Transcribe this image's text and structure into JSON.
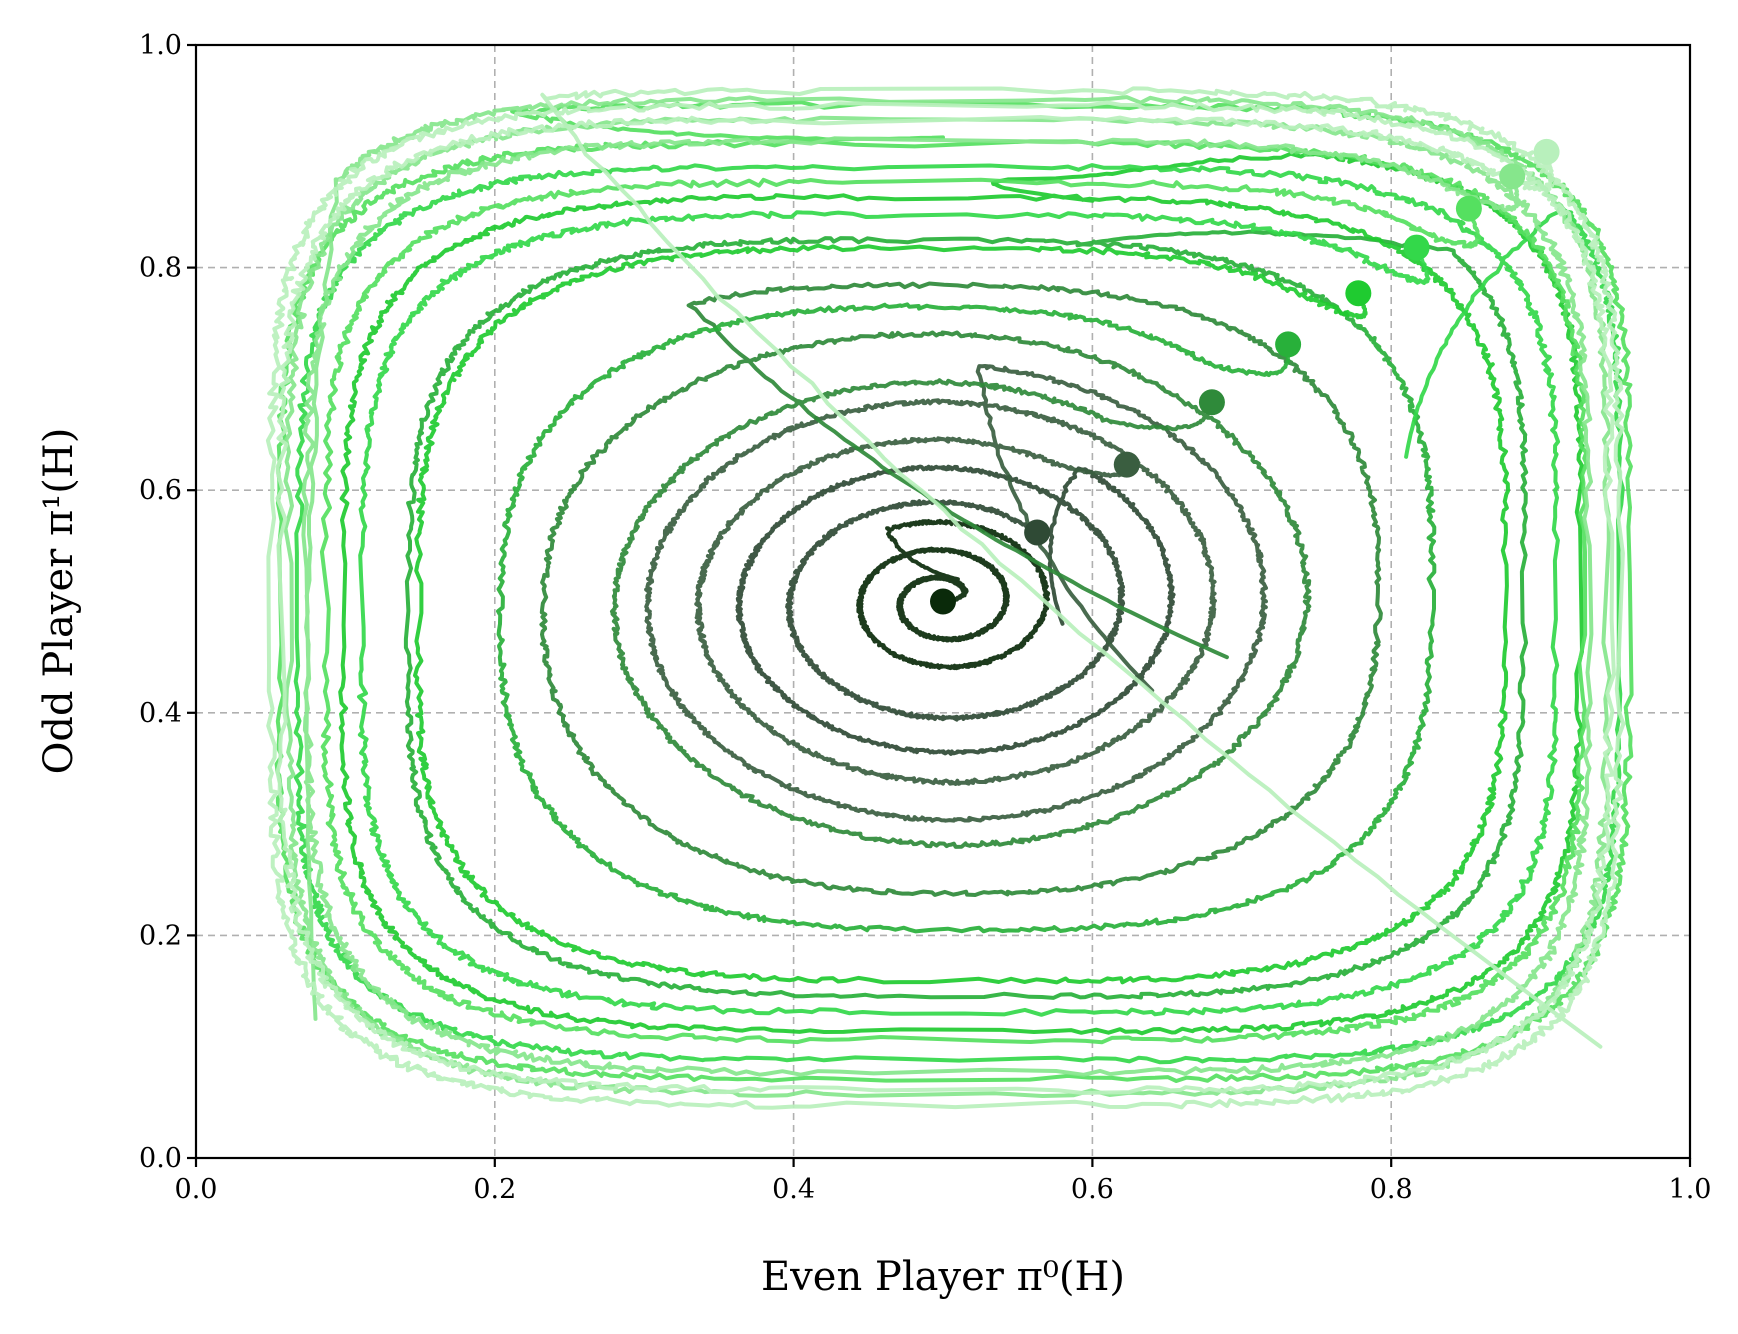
{
  "chart_data": {
    "type": "line",
    "xlabel": "Even Player π⁰(H)",
    "ylabel": "Odd Player π¹(H)",
    "xlim": [
      0.0,
      1.0
    ],
    "ylim": [
      0.0,
      1.0
    ],
    "xticks": [
      "0.0",
      "0.2",
      "0.4",
      "0.6",
      "0.8",
      "1.0"
    ],
    "yticks": [
      "0.0",
      "0.2",
      "0.4",
      "0.6",
      "0.8",
      "1.0"
    ],
    "grid": true,
    "legend": "none",
    "center": [
      0.5,
      0.5
    ],
    "series": [
      {
        "color": "#0a2a0a",
        "start": [
          0.5,
          0.5
        ],
        "end": [
          0.51,
          0.52
        ],
        "rx": [
          0.015,
          0.08
        ],
        "ry": [
          0.015,
          0.075
        ],
        "turns": 2.4,
        "start_angle": 0.0
      },
      {
        "color": "#2f4a35",
        "start": [
          0.563,
          0.562
        ],
        "end": [
          0.58,
          0.48
        ],
        "rx": [
          0.09,
          0.16
        ],
        "ry": [
          0.085,
          0.15
        ],
        "turns": 2.1,
        "start_angle": 0.72
      },
      {
        "color": "#3a5e40",
        "start": [
          0.623,
          0.623
        ],
        "end": [
          0.64,
          0.42
        ],
        "rx": [
          0.15,
          0.225
        ],
        "ry": [
          0.14,
          0.215
        ],
        "turns": 2.2,
        "start_angle": 0.62
      },
      {
        "color": "#2f8a3a",
        "start": [
          0.68,
          0.679
        ],
        "end": [
          0.69,
          0.45
        ],
        "rx": [
          0.2,
          0.31
        ],
        "ry": [
          0.19,
          0.29
        ],
        "turns": 2.3,
        "start_angle": 0.56
      },
      {
        "color": "#28b03a",
        "start": [
          0.731,
          0.731
        ],
        "end": [
          0.59,
          0.82
        ],
        "rx": [
          0.27,
          0.4
        ],
        "ry": [
          0.255,
          0.38
        ],
        "turns": 2.1,
        "start_angle": 0.52
      },
      {
        "color": "#1fcb30",
        "start": [
          0.778,
          0.777
        ],
        "end": [
          0.6,
          0.86
        ],
        "rx": [
          0.33,
          0.44
        ],
        "ry": [
          0.31,
          0.41
        ],
        "turns": 2.2,
        "start_angle": 0.48
      },
      {
        "color": "#33d84a",
        "start": [
          0.817,
          0.818
        ],
        "end": [
          0.81,
          0.63
        ],
        "rx": [
          0.37,
          0.46
        ],
        "ry": [
          0.34,
          0.43
        ],
        "turns": 2.1,
        "start_angle": 0.44
      },
      {
        "color": "#55e060",
        "start": [
          0.852,
          0.853
        ],
        "end": [
          0.5,
          0.917
        ],
        "rx": [
          0.4,
          0.47
        ],
        "ry": [
          0.37,
          0.45
        ],
        "turns": 2.3,
        "start_angle": 0.42
      },
      {
        "color": "#86e68c",
        "start": [
          0.881,
          0.882
        ],
        "end": [
          0.08,
          0.125
        ],
        "rx": [
          0.42,
          0.45
        ],
        "ry": [
          0.41,
          0.455
        ],
        "turns": 2.4,
        "start_angle": 0.4
      },
      {
        "color": "#b8f0bc",
        "start": [
          0.904,
          0.904
        ],
        "end": [
          0.94,
          0.1
        ],
        "rx": [
          0.44,
          0.455
        ],
        "ry": [
          0.43,
          0.46
        ],
        "turns": 2.3,
        "start_angle": 0.39
      }
    ]
  }
}
